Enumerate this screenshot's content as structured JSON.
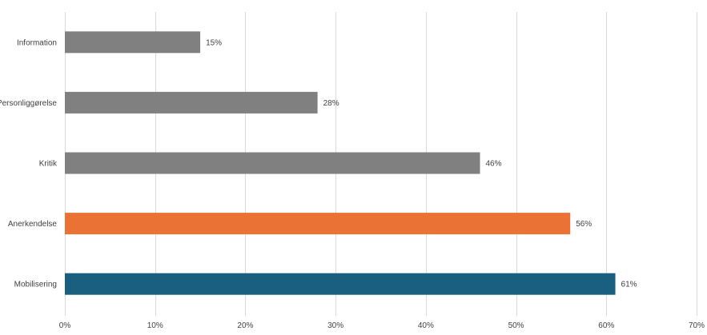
{
  "chart_data": {
    "type": "bar",
    "orientation": "horizontal",
    "title": "",
    "xlabel": "",
    "ylabel": "",
    "categories": [
      "Information",
      "Personliggørelse",
      "Kritik",
      "Anerkendelse",
      "Mobilisering"
    ],
    "values": [
      15,
      28,
      46,
      56,
      61
    ],
    "value_labels": [
      "15%",
      "28%",
      "46%",
      "56%",
      "61%"
    ],
    "xlim": [
      0,
      70
    ],
    "x_ticks": [
      0,
      10,
      20,
      30,
      40,
      50,
      60,
      70
    ],
    "x_tick_labels": [
      "0%",
      "10%",
      "20%",
      "30%",
      "40%",
      "50%",
      "60%",
      "70%"
    ],
    "grid": "vertical",
    "legend": "none",
    "bar_colors": [
      "#808080",
      "#808080",
      "#808080",
      "#ea7234",
      "#1b5f80"
    ]
  },
  "colors": {
    "gridline": "#d9d9d9",
    "text": "#404040"
  }
}
